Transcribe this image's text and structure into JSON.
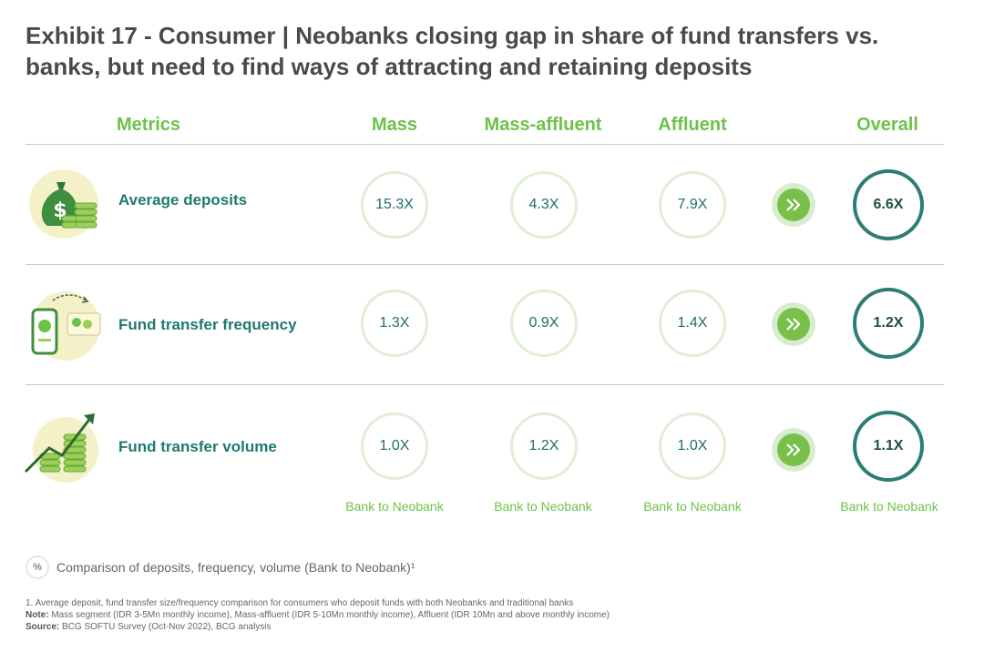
{
  "title": "Exhibit 17 - Consumer | Neobanks closing gap in share of fund transfers vs. banks, but need to find ways of attracting and retaining deposits",
  "headers": {
    "metrics": "Metrics",
    "mass": "Mass",
    "mass_affluent": "Mass-affluent",
    "affluent": "Affluent",
    "overall": "Overall"
  },
  "chart_data": {
    "type": "table",
    "title": "Exhibit 17 - Consumer | Neobanks closing gap in share of fund transfers vs. banks, but need to find ways of attracting and retaining deposits",
    "columns": [
      "Mass",
      "Mass-affluent",
      "Affluent",
      "Overall"
    ],
    "rows": [
      {
        "metric": "Average deposits",
        "icon": "money-bag-coins-icon",
        "values": [
          "15.3X",
          "4.3X",
          "7.9X"
        ],
        "overall": "6.6X"
      },
      {
        "metric": "Fund transfer frequency",
        "icon": "phone-transfer-icon",
        "values": [
          "1.3X",
          "0.9X",
          "1.4X"
        ],
        "overall": "1.2X"
      },
      {
        "metric": "Fund transfer volume",
        "icon": "coin-stacks-growth-icon",
        "values": [
          "1.0X",
          "1.2X",
          "1.0X"
        ],
        "overall": "1.1X"
      }
    ],
    "unit_caption": "Bank to Neobank"
  },
  "legend": {
    "symbol": "%",
    "text": "Comparison of deposits, frequency, volume (Bank to Neobank)¹"
  },
  "footnotes": {
    "note1": "1. Average deposit, fund transfer size/frequency comparison for consumers who deposit funds with both Neobanks and traditional banks",
    "note_label": "Note:",
    "note_text": "Mass segment (IDR 3-5Mn monthly income), Mass-affluent (IDR 5-10Mn monthly income), Affluent (IDR 10Mn and above monthly income)",
    "source_label": "Source:",
    "source_text": "BCG SOFTU Survey (Oct-Nov 2022), BCG analysis"
  },
  "colors": {
    "accent_green": "#6cc24a",
    "teal": "#1f7a6e",
    "overall_ring": "#2e7d74"
  }
}
